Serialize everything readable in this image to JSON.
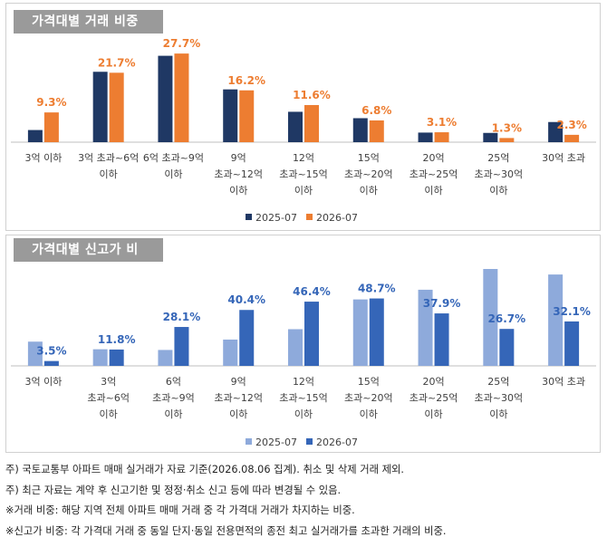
{
  "colors": {
    "prev": "#1f3864",
    "curr": "#ed7d31",
    "prev2": "#8eaadb",
    "curr2": "#3566b8",
    "label1": "#ed7d31",
    "label2": "#3566b8"
  },
  "chart_data": [
    {
      "type": "bar",
      "title": "가격대별 거래 비중",
      "categories": [
        "3억 이하",
        "3억 초과~6억 이하",
        "6억 초과~9억 이하",
        "9억 초과~12억 이하",
        "12억 초과~15억 이하",
        "15억 초과~20억 이하",
        "20억 초과~25억 이하",
        "25억 초과~30억 이하",
        "30억 초과"
      ],
      "category_lines": [
        [
          "3억 이하"
        ],
        [
          "3억 초과~6억",
          "이하"
        ],
        [
          "6억 초과~9억",
          "이하"
        ],
        [
          "9억",
          "초과~12억",
          "이하"
        ],
        [
          "12억",
          "초과~15억",
          "이하"
        ],
        [
          "15억",
          "초과~20억",
          "이하"
        ],
        [
          "20억",
          "초과~25억",
          "이하"
        ],
        [
          "25억",
          "초과~30억",
          "이하"
        ],
        [
          "30억 초과"
        ]
      ],
      "series": [
        {
          "name": "2025-07",
          "values": [
            3.8,
            22.0,
            27.0,
            16.5,
            9.5,
            7.5,
            3.0,
            2.9,
            6.3
          ]
        },
        {
          "name": "2026-07",
          "values": [
            9.3,
            21.7,
            27.7,
            16.2,
            11.6,
            6.8,
            3.1,
            1.3,
            2.3
          ]
        }
      ],
      "data_labels": [
        "9.3%",
        "21.7%",
        "27.7%",
        "16.2%",
        "11.6%",
        "6.8%",
        "3.1%",
        "1.3%",
        "2.3%"
      ],
      "ylim": [
        0,
        30
      ],
      "legend": "bottom-center"
    },
    {
      "type": "bar",
      "title": "가격대별 신고가 비중",
      "categories": [
        "3억 이하",
        "3억 초과~6억 이하",
        "6억 초과~9억 이하",
        "9억 초과~12억 이하",
        "12억 초과~15억 이하",
        "15억 초과~20억 이하",
        "20억 초과~25억 이하",
        "25억 초과~30억 이하",
        "30억 초과"
      ],
      "category_lines": [
        [
          "3억 이하"
        ],
        [
          "3억",
          "초과~6억",
          "이하"
        ],
        [
          "6억",
          "초과~9억",
          "이하"
        ],
        [
          "9억",
          "초과~12억",
          "이하"
        ],
        [
          "12억",
          "초과~15억",
          "이하"
        ],
        [
          "15억",
          "초과~20억",
          "이하"
        ],
        [
          "20억",
          "초과~25억",
          "이하"
        ],
        [
          "25억",
          "초과~30억",
          "이하"
        ],
        [
          "30억 초과"
        ]
      ],
      "series": [
        {
          "name": "2025-07",
          "values": [
            17.5,
            12.0,
            11.5,
            19.0,
            26.5,
            48.0,
            55.0,
            70.0,
            66.0
          ]
        },
        {
          "name": "2026-07",
          "values": [
            3.5,
            11.8,
            28.1,
            40.4,
            46.4,
            48.7,
            37.9,
            26.7,
            32.1
          ]
        }
      ],
      "data_labels": [
        "3.5%",
        "11.8%",
        "28.1%",
        "40.4%",
        "46.4%",
        "48.7%",
        "37.9%",
        "26.7%",
        "32.1%"
      ],
      "ylim": [
        0,
        70
      ],
      "legend": "bottom-center"
    }
  ],
  "notes": [
    "주) 국토교통부 아파트 매매 실거래가 자료 기준(2026.08.06 집계). 취소 및 삭제 거래 제외.",
    "주) 최근 자료는 계약 후 신고기한 및 정정·취소 신고 등에 따라 변경될 수 있음.",
    "※거래 비중: 해당 지역 전체 아파트 매매 거래 중 각 가격대 거래가 차지하는 비중.",
    "※신고가 비중: 각 가격대 거래 중 동일 단지·동일 전용면적의 종전 최고 실거래가를 초과한 거래의 비중."
  ]
}
